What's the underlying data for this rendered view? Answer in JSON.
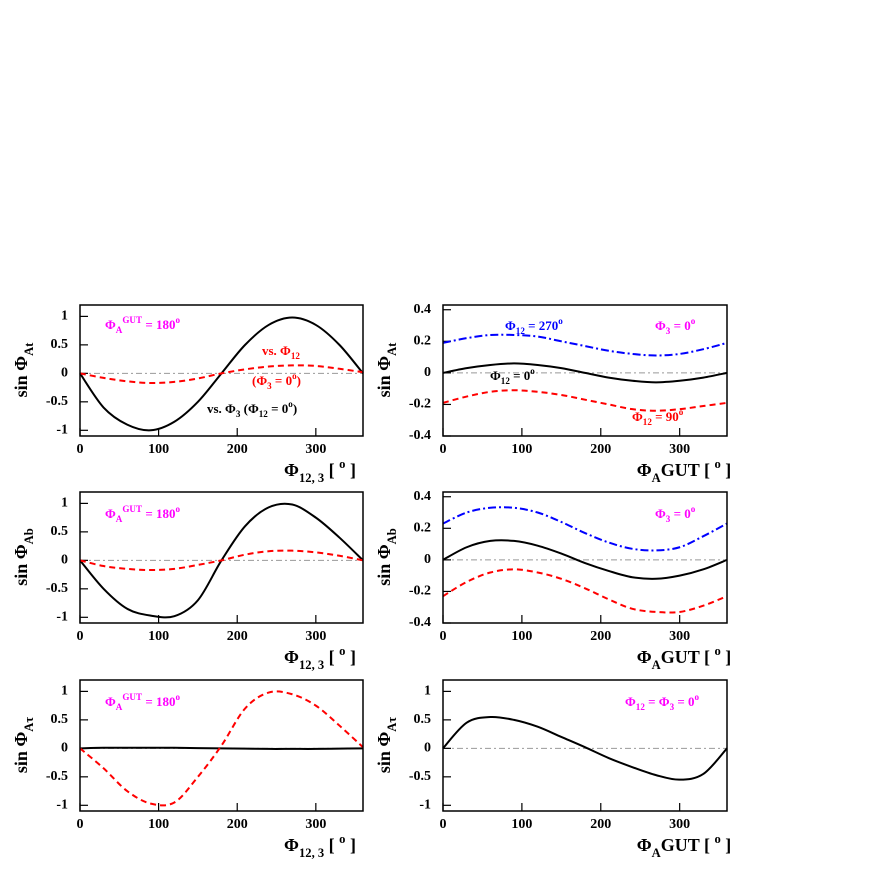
{
  "chart_data": [
    {
      "type": "line",
      "ylabel": [
        {
          "text": "sin Φ"
        },
        {
          "text": "At",
          "pos": "sub"
        }
      ],
      "xlabel": [
        {
          "text": "Φ"
        },
        {
          "text": "12, 3",
          "pos": "sub"
        },
        {
          "text": " [ "
        },
        {
          "text": "o",
          "pos": "sup"
        },
        {
          "text": " ]"
        }
      ],
      "xlim": [
        0,
        360
      ],
      "xticks": [
        0,
        100,
        200,
        300
      ],
      "ylim": [
        -1.1,
        1.2
      ],
      "yticks": [
        -1,
        -0.5,
        0,
        0.5,
        1
      ],
      "zero_line": true,
      "x": [
        0,
        30,
        60,
        90,
        120,
        150,
        180,
        210,
        240,
        270,
        300,
        330,
        360
      ],
      "series": [
        {
          "color": "#000000",
          "dash": "solid",
          "values": [
            0,
            -0.6,
            -0.9,
            -1.0,
            -0.85,
            -0.5,
            0,
            0.5,
            0.85,
            0.98,
            0.85,
            0.5,
            0
          ]
        },
        {
          "color": "#ff0000",
          "dash": "dashed",
          "values": [
            0,
            -0.08,
            -0.14,
            -0.17,
            -0.15,
            -0.09,
            0,
            0.07,
            0.12,
            0.14,
            0.13,
            0.08,
            0.02
          ]
        }
      ],
      "annotations": [
        {
          "color": "#ff00ff",
          "parts": [
            {
              "text": "Φ"
            },
            {
              "text": "A",
              "pos": "sub"
            },
            {
              "text": "GUT",
              "pos": "sup"
            },
            {
              "text": " = 180"
            },
            {
              "text": "o",
              "pos": "sup"
            }
          ]
        },
        {
          "color": "#ff0000",
          "parts": [
            {
              "text": "vs. Φ"
            },
            {
              "text": "12",
              "pos": "sub"
            }
          ]
        },
        {
          "color": "#ff0000",
          "parts": [
            {
              "text": "(Φ"
            },
            {
              "text": "3",
              "pos": "sub"
            },
            {
              "text": " = 0"
            },
            {
              "text": "o",
              "pos": "sup"
            },
            {
              "text": ")"
            }
          ]
        },
        {
          "color": "#000000",
          "parts": [
            {
              "text": "vs. Φ"
            },
            {
              "text": "3",
              "pos": "sub"
            },
            {
              "text": "   (Φ"
            },
            {
              "text": "12",
              "pos": "sub"
            },
            {
              "text": " = 0"
            },
            {
              "text": "o",
              "pos": "sup"
            },
            {
              "text": ")"
            }
          ]
        }
      ]
    },
    {
      "type": "line",
      "ylabel": [
        {
          "text": "sin Φ"
        },
        {
          "text": "At",
          "pos": "sub"
        }
      ],
      "xlabel": [
        {
          "text": "Φ"
        },
        {
          "text": "A",
          "pos": "sub"
        },
        {
          "text": "GUT"
        },
        {
          "text": "   [ "
        },
        {
          "text": "o",
          "pos": "sup"
        },
        {
          "text": " ]"
        }
      ],
      "xlim": [
        0,
        360
      ],
      "xticks": [
        0,
        100,
        200,
        300
      ],
      "ylim": [
        -0.4,
        0.43
      ],
      "yticks": [
        -0.4,
        -0.2,
        0,
        0.2,
        0.4
      ],
      "zero_line": true,
      "x": [
        0,
        30,
        60,
        90,
        120,
        150,
        180,
        210,
        240,
        270,
        300,
        330,
        360
      ],
      "series": [
        {
          "color": "#0000ff",
          "dash": "dashdot",
          "values": [
            0.19,
            0.22,
            0.24,
            0.24,
            0.23,
            0.2,
            0.17,
            0.14,
            0.12,
            0.11,
            0.12,
            0.15,
            0.19
          ]
        },
        {
          "color": "#000000",
          "dash": "solid",
          "values": [
            0,
            0.03,
            0.05,
            0.06,
            0.05,
            0.03,
            0,
            -0.03,
            -0.05,
            -0.06,
            -0.05,
            -0.03,
            0
          ]
        },
        {
          "color": "#ff0000",
          "dash": "dashed",
          "values": [
            -0.19,
            -0.15,
            -0.12,
            -0.11,
            -0.12,
            -0.14,
            -0.17,
            -0.2,
            -0.23,
            -0.24,
            -0.23,
            -0.21,
            -0.19
          ]
        }
      ],
      "annotations": [
        {
          "color": "#0000ff",
          "parts": [
            {
              "text": "Φ"
            },
            {
              "text": "12",
              "pos": "sub"
            },
            {
              "text": " = 270"
            },
            {
              "text": "o",
              "pos": "sup"
            }
          ]
        },
        {
          "color": "#ff00ff",
          "parts": [
            {
              "text": "Φ"
            },
            {
              "text": "3",
              "pos": "sub"
            },
            {
              "text": " = 0"
            },
            {
              "text": "o",
              "pos": "sup"
            }
          ]
        },
        {
          "color": "#000000",
          "parts": [
            {
              "text": "Φ"
            },
            {
              "text": "12",
              "pos": "sub"
            },
            {
              "text": " = 0"
            },
            {
              "text": "o",
              "pos": "sup"
            }
          ]
        },
        {
          "color": "#ff0000",
          "parts": [
            {
              "text": "Φ"
            },
            {
              "text": "12",
              "pos": "sub"
            },
            {
              "text": " = 90"
            },
            {
              "text": "o",
              "pos": "sup"
            }
          ]
        }
      ]
    },
    {
      "type": "line",
      "ylabel": [
        {
          "text": "sin Φ"
        },
        {
          "text": "Ab",
          "pos": "sub"
        }
      ],
      "xlabel": [
        {
          "text": "Φ"
        },
        {
          "text": "12, 3",
          "pos": "sub"
        },
        {
          "text": " [ "
        },
        {
          "text": "o",
          "pos": "sup"
        },
        {
          "text": " ]"
        }
      ],
      "xlim": [
        0,
        360
      ],
      "xticks": [
        0,
        100,
        200,
        300
      ],
      "ylim": [
        -1.1,
        1.2
      ],
      "yticks": [
        -1,
        -0.5,
        0,
        0.5,
        1
      ],
      "zero_line": true,
      "x": [
        0,
        30,
        60,
        90,
        120,
        150,
        180,
        210,
        240,
        270,
        300,
        330,
        360
      ],
      "series": [
        {
          "color": "#000000",
          "dash": "solid",
          "values": [
            0,
            -0.5,
            -0.85,
            -0.97,
            -0.98,
            -0.7,
            0,
            0.6,
            0.93,
            0.98,
            0.75,
            0.4,
            0
          ]
        },
        {
          "color": "#ff0000",
          "dash": "dashed",
          "values": [
            0,
            -0.1,
            -0.15,
            -0.17,
            -0.15,
            -0.08,
            0,
            0.1,
            0.16,
            0.17,
            0.14,
            0.08,
            0
          ]
        }
      ],
      "annotations": [
        {
          "color": "#ff00ff",
          "parts": [
            {
              "text": "Φ"
            },
            {
              "text": "A",
              "pos": "sub"
            },
            {
              "text": "GUT",
              "pos": "sup"
            },
            {
              "text": " = 180"
            },
            {
              "text": "o",
              "pos": "sup"
            }
          ]
        }
      ]
    },
    {
      "type": "line",
      "ylabel": [
        {
          "text": "sin Φ"
        },
        {
          "text": "Ab",
          "pos": "sub"
        }
      ],
      "xlabel": [
        {
          "text": "Φ"
        },
        {
          "text": "A",
          "pos": "sub"
        },
        {
          "text": "GUT"
        },
        {
          "text": "   [ "
        },
        {
          "text": "o",
          "pos": "sup"
        },
        {
          "text": " ]"
        }
      ],
      "xlim": [
        0,
        360
      ],
      "xticks": [
        0,
        100,
        200,
        300
      ],
      "ylim": [
        -0.4,
        0.43
      ],
      "yticks": [
        -0.4,
        -0.2,
        0,
        0.2,
        0.4
      ],
      "zero_line": true,
      "x": [
        0,
        30,
        60,
        90,
        120,
        150,
        180,
        210,
        240,
        270,
        300,
        330,
        360
      ],
      "series": [
        {
          "color": "#0000ff",
          "dash": "dashdot",
          "values": [
            0.23,
            0.3,
            0.33,
            0.33,
            0.3,
            0.24,
            0.17,
            0.11,
            0.07,
            0.06,
            0.08,
            0.15,
            0.23
          ]
        },
        {
          "color": "#000000",
          "dash": "solid",
          "values": [
            0,
            0.08,
            0.12,
            0.12,
            0.09,
            0.04,
            -0.02,
            -0.07,
            -0.11,
            -0.12,
            -0.1,
            -0.06,
            0
          ]
        },
        {
          "color": "#ff0000",
          "dash": "dashed",
          "values": [
            -0.23,
            -0.14,
            -0.08,
            -0.06,
            -0.08,
            -0.12,
            -0.18,
            -0.25,
            -0.31,
            -0.33,
            -0.33,
            -0.29,
            -0.23
          ]
        }
      ],
      "annotations": [
        {
          "color": "#ff00ff",
          "parts": [
            {
              "text": "Φ"
            },
            {
              "text": "3",
              "pos": "sub"
            },
            {
              "text": " = 0"
            },
            {
              "text": "o",
              "pos": "sup"
            }
          ]
        }
      ]
    },
    {
      "type": "line",
      "ylabel": [
        {
          "text": "sin Φ"
        },
        {
          "text": "Aτ",
          "pos": "sub"
        }
      ],
      "xlabel": [
        {
          "text": "Φ"
        },
        {
          "text": "12, 3",
          "pos": "sub"
        },
        {
          "text": " [ "
        },
        {
          "text": "o",
          "pos": "sup"
        },
        {
          "text": " ]"
        }
      ],
      "xlim": [
        0,
        360
      ],
      "xticks": [
        0,
        100,
        200,
        300
      ],
      "ylim": [
        -1.1,
        1.2
      ],
      "yticks": [
        -1,
        -0.5,
        0,
        0.5,
        1
      ],
      "zero_line": true,
      "x": [
        0,
        30,
        60,
        90,
        120,
        150,
        180,
        210,
        240,
        270,
        300,
        330,
        360
      ],
      "series": [
        {
          "color": "#000000",
          "dash": "solid",
          "values": [
            0,
            0.01,
            0.01,
            0.01,
            0.01,
            0.005,
            0,
            -0.005,
            -0.01,
            -0.01,
            -0.01,
            -0.005,
            0
          ]
        },
        {
          "color": "#ff0000",
          "dash": "dashed",
          "values": [
            0,
            -0.35,
            -0.75,
            -0.97,
            -0.95,
            -0.5,
            0.05,
            0.7,
            0.98,
            0.95,
            0.75,
            0.4,
            0.02
          ]
        }
      ],
      "annotations": [
        {
          "color": "#ff00ff",
          "parts": [
            {
              "text": "Φ"
            },
            {
              "text": "A",
              "pos": "sub"
            },
            {
              "text": "GUT",
              "pos": "sup"
            },
            {
              "text": " = 180"
            },
            {
              "text": "o",
              "pos": "sup"
            }
          ]
        }
      ]
    },
    {
      "type": "line",
      "ylabel": [
        {
          "text": "sin Φ"
        },
        {
          "text": "Aτ",
          "pos": "sub"
        }
      ],
      "xlabel": [
        {
          "text": "Φ"
        },
        {
          "text": "A",
          "pos": "sub"
        },
        {
          "text": "GUT"
        },
        {
          "text": "   [ "
        },
        {
          "text": "o",
          "pos": "sup"
        },
        {
          "text": " ]"
        }
      ],
      "xlim": [
        0,
        360
      ],
      "xticks": [
        0,
        100,
        200,
        300
      ],
      "ylim": [
        -1.1,
        1.2
      ],
      "yticks": [
        -1,
        -0.5,
        0,
        0.5,
        1
      ],
      "zero_line": true,
      "x": [
        0,
        30,
        60,
        90,
        120,
        150,
        180,
        210,
        240,
        270,
        300,
        330,
        360
      ],
      "series": [
        {
          "color": "#000000",
          "dash": "solid",
          "values": [
            0,
            0.45,
            0.55,
            0.5,
            0.38,
            0.2,
            0.02,
            -0.17,
            -0.33,
            -0.47,
            -0.55,
            -0.45,
            0
          ]
        }
      ],
      "annotations": [
        {
          "color": "#ff00ff",
          "parts": [
            {
              "text": "Φ"
            },
            {
              "text": "12",
              "pos": "sub"
            },
            {
              "text": " = Φ"
            },
            {
              "text": "3",
              "pos": "sub"
            },
            {
              "text": " = 0"
            },
            {
              "text": "o",
              "pos": "sup"
            }
          ]
        }
      ]
    }
  ]
}
